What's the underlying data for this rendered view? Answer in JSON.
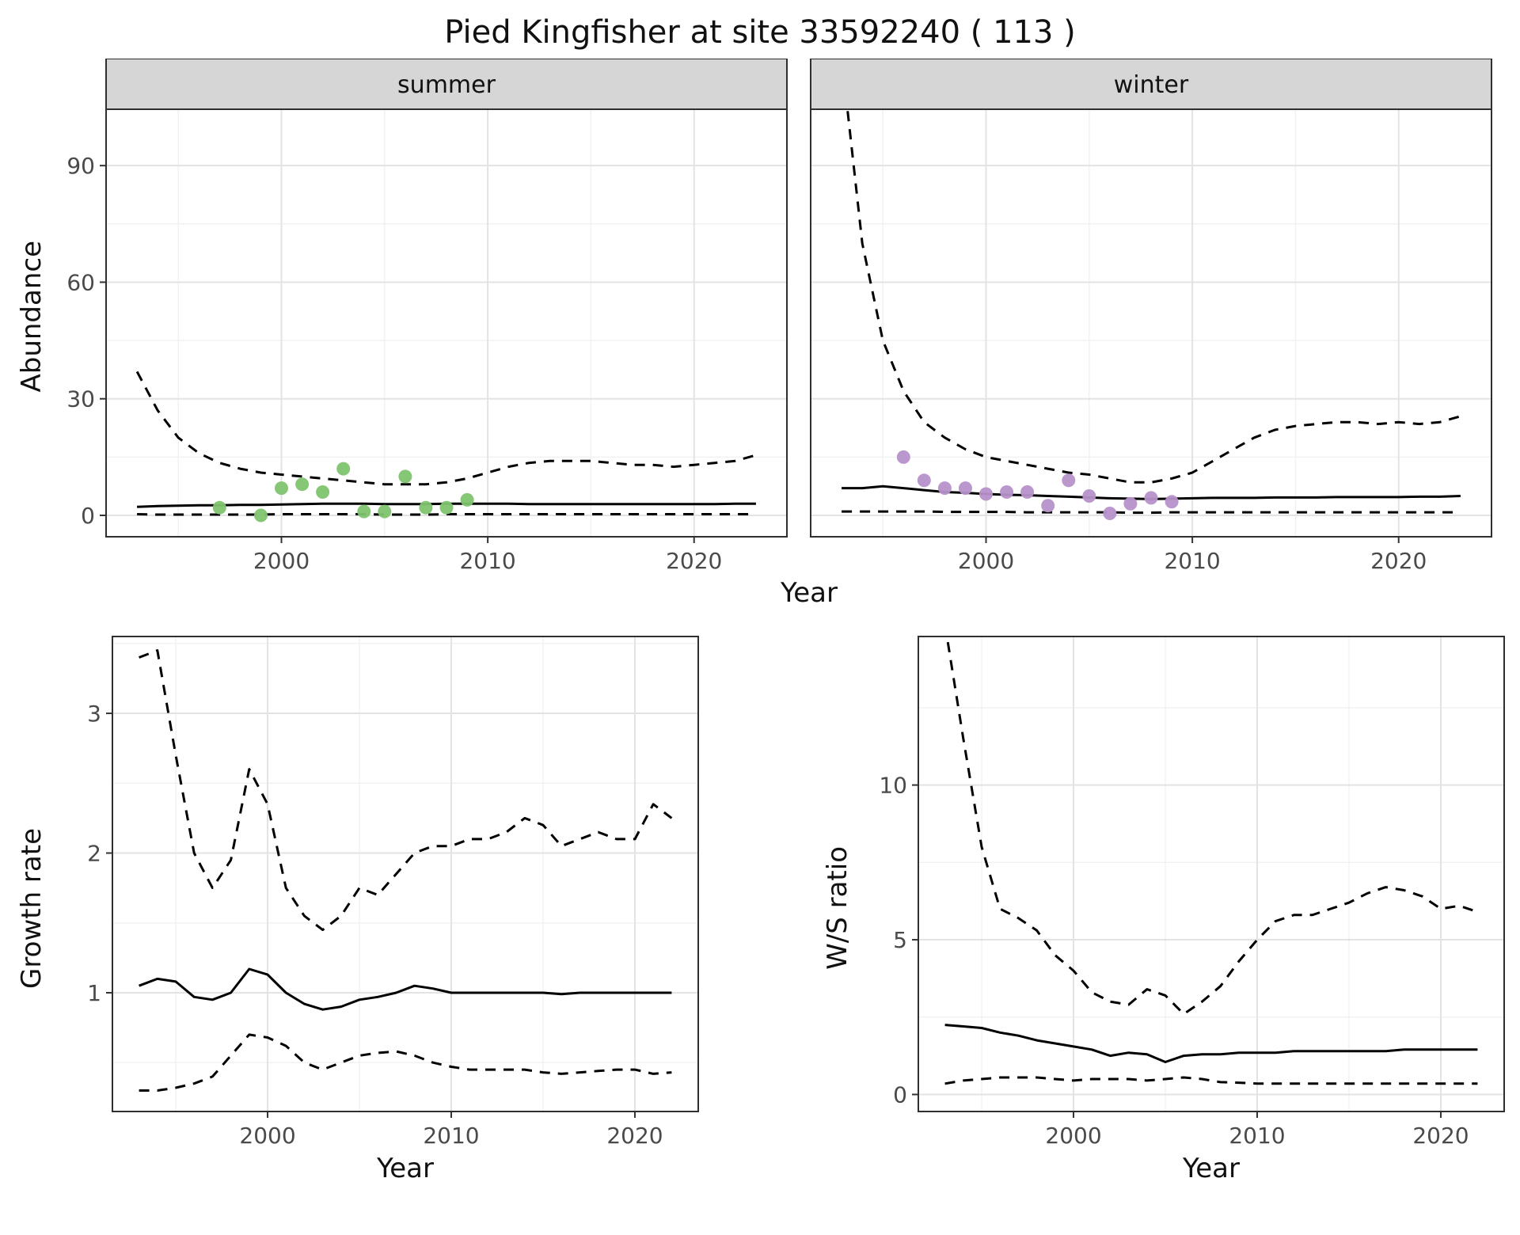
{
  "title": "Pied Kingfisher at site 33592240 ( 113 )",
  "labels": {
    "top_xlabel": "Year",
    "growth_xlabel": "Year",
    "ws_xlabel": "Year",
    "abundance_ylabel": "Abundance",
    "growth_ylabel": "Growth rate",
    "ws_ylabel": "W/S ratio"
  },
  "colors": {
    "line": "#000000",
    "grid_major": "#e3e3e3",
    "grid_minor": "#f1f1f1",
    "strip_fill": "#d6d6d6",
    "panel_border": "#2f2f2f",
    "tick_mark": "#333333",
    "summer_points": "#80c46f",
    "winter_points": "#b691c9"
  },
  "chart_data": [
    {
      "key": "summer",
      "type": "line",
      "facet_label": "summer",
      "xlabel": "Year",
      "ylabel": "Abundance",
      "xlim": [
        1991.5,
        2024.5
      ],
      "ylim": [
        -5.5,
        104.5
      ],
      "xticks": [
        2000,
        2010,
        2020
      ],
      "xminor": [
        1995,
        2005,
        2015
      ],
      "yticks": [
        0,
        30,
        60,
        90
      ],
      "yminor": [
        15,
        45,
        75
      ],
      "show_y_labels": true,
      "years": [
        1993,
        1994,
        1995,
        1996,
        1997,
        1998,
        1999,
        2000,
        2001,
        2002,
        2003,
        2004,
        2005,
        2006,
        2007,
        2008,
        2009,
        2010,
        2011,
        2012,
        2013,
        2014,
        2015,
        2016,
        2017,
        2018,
        2019,
        2020,
        2021,
        2022,
        2023
      ],
      "series": [
        {
          "name": "upper_95ci",
          "style": "dashed",
          "y": [
            37,
            27,
            20,
            16,
            13.5,
            12,
            11,
            10.5,
            10,
            9.5,
            9,
            8.5,
            8,
            8,
            8,
            8.5,
            9.5,
            11,
            12.5,
            13.5,
            14,
            14,
            14,
            13.5,
            13,
            13,
            12.5,
            13,
            13.5,
            14,
            15.5
          ]
        },
        {
          "name": "median",
          "style": "solid",
          "y": [
            2.2,
            2.4,
            2.5,
            2.6,
            2.6,
            2.7,
            2.7,
            2.8,
            2.9,
            3.0,
            3.0,
            3.0,
            2.9,
            2.9,
            2.9,
            3.0,
            3.0,
            3.0,
            3.0,
            2.9,
            2.9,
            2.9,
            2.9,
            2.9,
            2.9,
            2.9,
            2.9,
            2.9,
            2.9,
            3.0,
            3.0
          ]
        },
        {
          "name": "lower_95ci",
          "style": "dashed",
          "y": [
            0.3,
            0.2,
            0.2,
            0.2,
            0.2,
            0.2,
            0.2,
            0.3,
            0.3,
            0.3,
            0.3,
            0.3,
            0.2,
            0.2,
            0.2,
            0.3,
            0.3,
            0.3,
            0.3,
            0.3,
            0.3,
            0.3,
            0.3,
            0.3,
            0.3,
            0.3,
            0.3,
            0.3,
            0.3,
            0.3,
            0.3
          ]
        }
      ],
      "points": {
        "name": "summer-observations",
        "color_key": "summer_points",
        "x": [
          1997,
          1999,
          2000,
          2001,
          2002,
          2003,
          2004,
          2005,
          2006,
          2007,
          2008,
          2009
        ],
        "y": [
          2,
          0,
          7,
          8,
          6,
          12,
          1,
          1,
          10,
          2,
          2,
          4
        ]
      }
    },
    {
      "key": "winter",
      "type": "line",
      "facet_label": "winter",
      "xlabel": "Year",
      "ylabel": "Abundance",
      "xlim": [
        1991.5,
        2024.5
      ],
      "ylim": [
        -5.5,
        104.5
      ],
      "xticks": [
        2000,
        2010,
        2020
      ],
      "xminor": [
        1995,
        2005,
        2015
      ],
      "yticks": [
        0,
        30,
        60,
        90
      ],
      "yminor": [
        15,
        45,
        75
      ],
      "show_y_labels": false,
      "years": [
        1993,
        1994,
        1995,
        1996,
        1997,
        1998,
        1999,
        2000,
        2001,
        2002,
        2003,
        2004,
        2005,
        2006,
        2007,
        2008,
        2009,
        2010,
        2011,
        2012,
        2013,
        2014,
        2015,
        2016,
        2017,
        2018,
        2019,
        2020,
        2021,
        2022,
        2023
      ],
      "series": [
        {
          "name": "upper_95ci",
          "style": "dashed",
          "y": [
            118,
            70,
            45,
            32,
            24,
            20,
            17,
            15,
            14,
            13,
            12,
            11,
            10.5,
            9.5,
            8.5,
            8.5,
            9.5,
            11,
            14,
            17,
            20,
            22,
            23,
            23.5,
            24,
            24,
            23.5,
            24,
            23.5,
            24,
            25.5
          ]
        },
        {
          "name": "median",
          "style": "solid",
          "y": [
            7.0,
            7.0,
            7.5,
            7.0,
            6.5,
            6.0,
            5.8,
            5.5,
            5.3,
            5.2,
            5.0,
            4.8,
            4.6,
            4.4,
            4.3,
            4.2,
            4.3,
            4.4,
            4.5,
            4.5,
            4.5,
            4.6,
            4.6,
            4.6,
            4.7,
            4.7,
            4.7,
            4.7,
            4.8,
            4.8,
            5.0
          ]
        },
        {
          "name": "lower_95ci",
          "style": "dashed",
          "y": [
            1.0,
            1.0,
            1.0,
            1.0,
            1.0,
            0.9,
            0.9,
            0.9,
            0.9,
            0.8,
            0.8,
            0.8,
            0.8,
            0.8,
            0.7,
            0.7,
            0.8,
            0.8,
            0.8,
            0.8,
            0.8,
            0.8,
            0.8,
            0.8,
            0.8,
            0.8,
            0.8,
            0.8,
            0.8,
            0.8,
            0.8
          ]
        }
      ],
      "points": {
        "name": "winter-observations",
        "color_key": "winter_points",
        "x": [
          1996,
          1997,
          1998,
          1999,
          2000,
          2001,
          2002,
          2003,
          2004,
          2005,
          2006,
          2007,
          2008,
          2009
        ],
        "y": [
          15,
          9,
          7,
          7,
          5.5,
          6,
          6,
          2.5,
          9,
          5,
          0.5,
          3,
          4.5,
          3.5
        ]
      }
    },
    {
      "key": "growth",
      "type": "line",
      "facet_label": null,
      "xlabel": "Year",
      "ylabel": "Growth rate",
      "xlim": [
        1991.55,
        2023.45
      ],
      "ylim": [
        0.15,
        3.55
      ],
      "xticks": [
        2000,
        2010,
        2020
      ],
      "xminor": [
        1995,
        2005,
        2015
      ],
      "yticks": [
        1,
        2,
        3
      ],
      "yminor": [
        0.5,
        1.5,
        2.5,
        3.5
      ],
      "show_y_labels": true,
      "years": [
        1993,
        1994,
        1995,
        1996,
        1997,
        1998,
        1999,
        2000,
        2001,
        2002,
        2003,
        2004,
        2005,
        2006,
        2007,
        2008,
        2009,
        2010,
        2011,
        2012,
        2013,
        2014,
        2015,
        2016,
        2017,
        2018,
        2019,
        2020,
        2021,
        2022
      ],
      "series": [
        {
          "name": "upper_95ci",
          "style": "dashed",
          "y": [
            3.4,
            3.45,
            2.7,
            2.0,
            1.75,
            1.95,
            2.6,
            2.35,
            1.75,
            1.55,
            1.45,
            1.55,
            1.75,
            1.7,
            1.85,
            2.0,
            2.05,
            2.05,
            2.1,
            2.1,
            2.15,
            2.25,
            2.2,
            2.05,
            2.1,
            2.15,
            2.1,
            2.1,
            2.35,
            2.25
          ]
        },
        {
          "name": "median",
          "style": "solid",
          "y": [
            1.05,
            1.1,
            1.08,
            0.97,
            0.95,
            1.0,
            1.17,
            1.13,
            1.0,
            0.92,
            0.88,
            0.9,
            0.95,
            0.97,
            1.0,
            1.05,
            1.03,
            1.0,
            1.0,
            1.0,
            1.0,
            1.0,
            1.0,
            0.99,
            1.0,
            1.0,
            1.0,
            1.0,
            1.0,
            1.0
          ]
        },
        {
          "name": "lower_95ci",
          "style": "dashed",
          "y": [
            0.3,
            0.3,
            0.32,
            0.35,
            0.4,
            0.55,
            0.7,
            0.68,
            0.62,
            0.5,
            0.45,
            0.5,
            0.55,
            0.57,
            0.58,
            0.55,
            0.5,
            0.47,
            0.45,
            0.45,
            0.45,
            0.45,
            0.43,
            0.42,
            0.43,
            0.44,
            0.45,
            0.45,
            0.42,
            0.43
          ]
        }
      ],
      "points": null
    },
    {
      "key": "ws",
      "type": "line",
      "facet_label": null,
      "xlabel": "Year",
      "ylabel": "W/S ratio",
      "xlim": [
        1991.55,
        2023.45
      ],
      "ylim": [
        -0.55,
        14.8
      ],
      "xticks": [
        2000,
        2010,
        2020
      ],
      "xminor": [
        1995,
        2005,
        2015
      ],
      "yticks": [
        0,
        5,
        10
      ],
      "yminor": [
        2.5,
        7.5,
        12.5
      ],
      "show_y_labels": true,
      "years": [
        1993,
        1994,
        1995,
        1996,
        1997,
        1998,
        1999,
        2000,
        2001,
        2002,
        2003,
        2004,
        2005,
        2006,
        2007,
        2008,
        2009,
        2010,
        2011,
        2012,
        2013,
        2014,
        2015,
        2016,
        2017,
        2018,
        2019,
        2020,
        2021,
        2022
      ],
      "series": [
        {
          "name": "upper_95ci",
          "style": "dashed",
          "y": [
            15.2,
            11.5,
            8.0,
            6.0,
            5.7,
            5.3,
            4.5,
            4.0,
            3.3,
            3.0,
            2.9,
            3.4,
            3.2,
            2.6,
            3.0,
            3.5,
            4.3,
            5.0,
            5.6,
            5.8,
            5.8,
            6.0,
            6.2,
            6.5,
            6.7,
            6.6,
            6.4,
            6.0,
            6.1,
            5.9
          ]
        },
        {
          "name": "median",
          "style": "solid",
          "y": [
            2.25,
            2.2,
            2.15,
            2.0,
            1.9,
            1.75,
            1.65,
            1.55,
            1.45,
            1.25,
            1.35,
            1.3,
            1.05,
            1.25,
            1.3,
            1.3,
            1.35,
            1.35,
            1.35,
            1.4,
            1.4,
            1.4,
            1.4,
            1.4,
            1.4,
            1.45,
            1.45,
            1.45,
            1.45,
            1.45
          ]
        },
        {
          "name": "lower_95ci",
          "style": "dashed",
          "y": [
            0.35,
            0.45,
            0.5,
            0.55,
            0.55,
            0.55,
            0.5,
            0.45,
            0.5,
            0.5,
            0.5,
            0.45,
            0.5,
            0.55,
            0.5,
            0.4,
            0.38,
            0.35,
            0.35,
            0.35,
            0.35,
            0.35,
            0.35,
            0.35,
            0.35,
            0.35,
            0.35,
            0.35,
            0.35,
            0.35
          ]
        }
      ],
      "points": null
    }
  ]
}
